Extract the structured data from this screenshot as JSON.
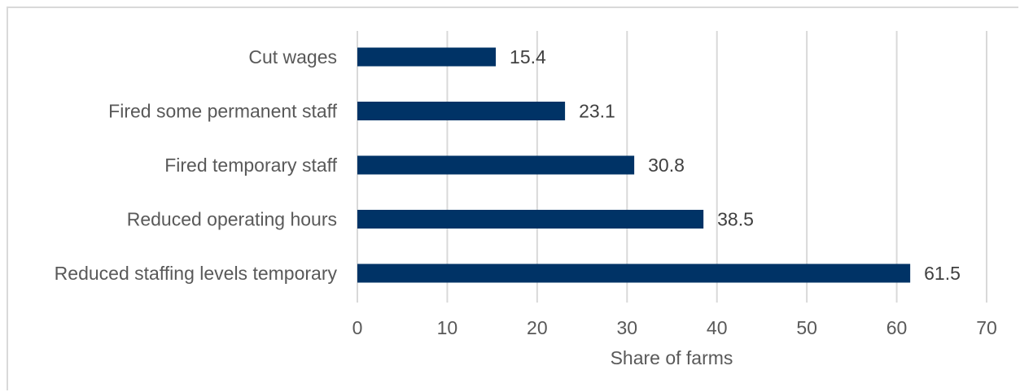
{
  "chart_data": {
    "type": "bar",
    "orientation": "horizontal",
    "categories": [
      "Cut wages",
      "Fired some permanent staff",
      "Fired temporary staff",
      "Reduced operating hours",
      "Reduced staffing levels temporary"
    ],
    "values": [
      15.4,
      23.1,
      30.8,
      38.5,
      61.5
    ],
    "value_labels": [
      "15.4",
      "23.1",
      "30.8",
      "38.5",
      "61.5"
    ],
    "xlabel": "Share of farms",
    "xlim": [
      0,
      70
    ],
    "xticks": [
      0,
      10,
      20,
      30,
      40,
      50,
      60,
      70
    ],
    "xtick_labels": [
      "0",
      "10",
      "20",
      "30",
      "40",
      "50",
      "60",
      "70"
    ],
    "grid": "vertical",
    "legend": "none",
    "bar_color": "#003366",
    "grid_color": "#d9d9d9"
  }
}
